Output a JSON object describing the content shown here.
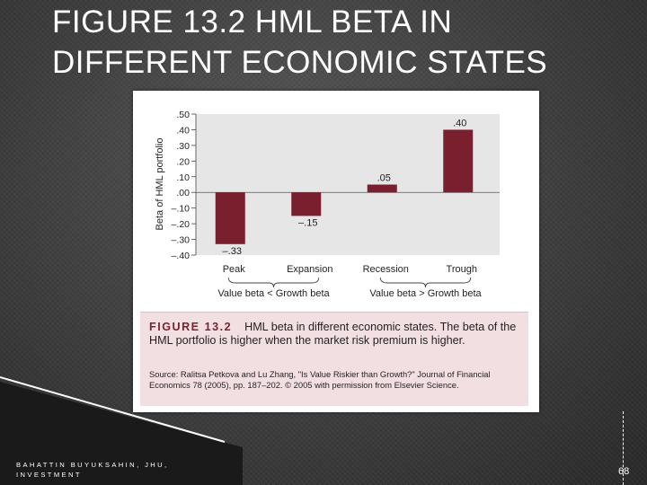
{
  "slide": {
    "title_line1": "FIGURE 13.2 HML BETA IN",
    "title_line2": "DIFFERENT ECONOMIC STATES",
    "footer_line1": "BAHATTIN BUYUKSAHIN, JHU,",
    "footer_line2": "INVESTMENT",
    "page_number": "68"
  },
  "figure": {
    "label": "FIGURE 13.2",
    "title": "HML beta in different economic states. The beta of the HML portfolio is higher when the market risk premium is higher.",
    "source": "Source: Ralitsa Petkova and Lu Zhang, \"Is Value Riskier than Growth?\" Journal of Financial Economics 78 (2005), pp. 187–202. © 2005 with permission from Elsevier Science."
  },
  "chart_data": {
    "type": "bar",
    "categories": [
      "Peak",
      "Expansion",
      "Recession",
      "Trough"
    ],
    "values": [
      -0.33,
      -0.15,
      0.05,
      0.4
    ],
    "data_labels": [
      "–.33",
      "–.15",
      ".05",
      ".40"
    ],
    "ylabel": "Beta of HML portfolio",
    "ylim": [
      -0.4,
      0.5
    ],
    "yticks": [
      0.5,
      0.4,
      0.3,
      0.2,
      0.1,
      0.0,
      -0.1,
      -0.2,
      -0.3,
      -0.4
    ],
    "ytick_labels": [
      ".50",
      ".40",
      ".30",
      ".20",
      ".10",
      ".00",
      "–.10",
      "–.20",
      "–.30",
      "–.40"
    ],
    "group_labels": [
      "Value beta < Growth beta",
      "Value beta > Growth beta"
    ],
    "grid": false,
    "legend": "none",
    "colors": {
      "bar": "#7a1f2e",
      "plot_background": "#e6e6e6",
      "caption_background": "#f1dfe2",
      "label_color": "#7a2431"
    }
  }
}
